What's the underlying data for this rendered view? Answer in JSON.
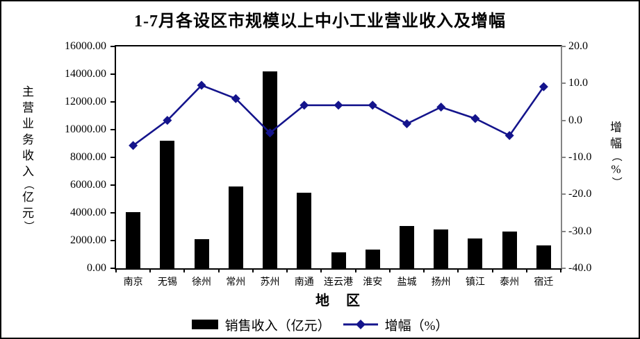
{
  "title": "1-7月各设区市规模以上中小工业营业收入及增幅",
  "left_axis": {
    "title": "主营业务收入（亿元）",
    "ticks": [
      "16000.00",
      "14000.00",
      "12000.00",
      "10000.00",
      "8000.00",
      "6000.00",
      "4000.00",
      "2000.00",
      "0.00"
    ]
  },
  "right_axis": {
    "title": "增幅（%）",
    "ticks": [
      "20.0",
      "10.0",
      "0.0",
      "-10.0",
      "-20.0",
      "-30.0",
      "-40.0"
    ]
  },
  "x_axis": {
    "title": "地　区",
    "categories": [
      "南京",
      "无锡",
      "徐州",
      "常州",
      "苏州",
      "南通",
      "连云港",
      "淮安",
      "盐城",
      "扬州",
      "镇江",
      "泰州",
      "宿迁"
    ]
  },
  "legend": [
    {
      "label": "销售收入（亿元）",
      "type": "bar",
      "color": "#000000"
    },
    {
      "label": "增幅（%）",
      "type": "line",
      "color": "#14148C"
    }
  ],
  "colors": {
    "bar": "#000000",
    "line": "#14148C",
    "right_axis_line": "#848484",
    "background": "#FFFFFF"
  },
  "chart_data": {
    "type": "bar+line combo",
    "title": "1-7月各设区市规模以上中小工业营业收入及增幅",
    "xlabel": "地　区",
    "ylabel_left": "主营业务收入（亿元）",
    "ylabel_right": "增幅（%）",
    "categories": [
      "南京",
      "无锡",
      "徐州",
      "常州",
      "苏州",
      "南通",
      "连云港",
      "淮安",
      "盐城",
      "扬州",
      "镇江",
      "泰州",
      "宿迁"
    ],
    "series": [
      {
        "name": "销售收入（亿元）",
        "type": "bar",
        "axis": "left",
        "unit": "亿元",
        "values": [
          4050,
          9200,
          2090,
          5890,
          14200,
          5470,
          1140,
          1340,
          3040,
          2820,
          2140,
          2670,
          1640
        ]
      },
      {
        "name": "增幅（%）",
        "type": "line",
        "axis": "right",
        "unit": "%",
        "values": [
          -6.8,
          0.0,
          9.5,
          5.9,
          -3.4,
          4.1,
          4.1,
          4.1,
          -0.9,
          3.6,
          0.5,
          -4.1,
          9.1
        ]
      }
    ],
    "left_ylim": [
      0,
      16000
    ],
    "left_tick_step": 2000,
    "right_ylim": [
      -40,
      20
    ],
    "right_tick_step": 10,
    "grid": false,
    "legend_position": "bottom"
  }
}
